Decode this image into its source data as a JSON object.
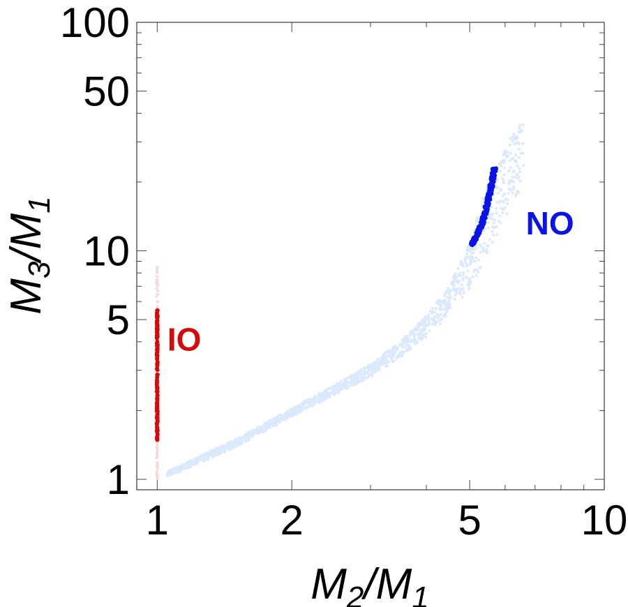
{
  "chart_data": {
    "type": "scatter",
    "x_scale": "log",
    "y_scale": "log",
    "xlim": [
      0.9,
      10
    ],
    "ylim": [
      0.9,
      100
    ],
    "x_ticks": [
      {
        "value": 1,
        "label": "1"
      },
      {
        "value": 2,
        "label": "2"
      },
      {
        "value": 5,
        "label": "5"
      },
      {
        "value": 10,
        "label": "10"
      }
    ],
    "y_ticks": [
      {
        "value": 1,
        "label": "1"
      },
      {
        "value": 5,
        "label": "5"
      },
      {
        "value": 10,
        "label": "10"
      },
      {
        "value": 50,
        "label": "50"
      },
      {
        "value": 100,
        "label": "100"
      }
    ],
    "xlabel": {
      "main": "M",
      "sub1": "2",
      "sep": "/M",
      "sub2": "1"
    },
    "ylabel": {
      "main": "M",
      "sub1": "3",
      "sep": "/M",
      "sub2": "1"
    },
    "series": [
      {
        "name": "NO",
        "label": "NO",
        "label_position": {
          "x": 7.6,
          "y": 13.2
        },
        "color": "#0a14e6",
        "light_color": "#dbe9ff",
        "light_band": [
          {
            "x": 1.05,
            "y_lo": 1.02,
            "y_hi": 1.08
          },
          {
            "x": 1.5,
            "y_lo": 1.38,
            "y_hi": 1.5
          },
          {
            "x": 2.0,
            "y_lo": 1.88,
            "y_hi": 2.05
          },
          {
            "x": 2.5,
            "y_lo": 2.35,
            "y_hi": 2.6
          },
          {
            "x": 3.0,
            "y_lo": 2.8,
            "y_hi": 3.2
          },
          {
            "x": 3.5,
            "y_lo": 3.4,
            "y_hi": 4.0
          },
          {
            "x": 4.0,
            "y_lo": 4.2,
            "y_hi": 5.2
          },
          {
            "x": 4.5,
            "y_lo": 5.2,
            "y_hi": 7.0
          },
          {
            "x": 5.0,
            "y_lo": 6.8,
            "y_hi": 11.0
          },
          {
            "x": 5.3,
            "y_lo": 8.5,
            "y_hi": 16.0
          },
          {
            "x": 5.6,
            "y_lo": 10.5,
            "y_hi": 22.0
          },
          {
            "x": 5.9,
            "y_lo": 12.5,
            "y_hi": 26.0
          },
          {
            "x": 6.2,
            "y_lo": 15.0,
            "y_hi": 32.0
          },
          {
            "x": 6.6,
            "y_lo": 20.0,
            "y_hi": 38.0
          }
        ],
        "dense_curve": [
          {
            "x": 5.05,
            "y": 10.6
          },
          {
            "x": 5.2,
            "y": 11.8
          },
          {
            "x": 5.35,
            "y": 13.5
          },
          {
            "x": 5.45,
            "y": 15.5
          },
          {
            "x": 5.55,
            "y": 18.0
          },
          {
            "x": 5.62,
            "y": 20.5
          },
          {
            "x": 5.68,
            "y": 23.0
          }
        ]
      },
      {
        "name": "IO",
        "label": "IO",
        "label_position": {
          "x": 1.1,
          "y": 4.1
        },
        "color": "#d40a0a",
        "light_color": "#f5d8d8",
        "light_range": {
          "x": 1.0,
          "y_lo": 1.0,
          "y_hi": 8.6
        },
        "dense_range": {
          "x": 1.0,
          "y_lo": 1.48,
          "y_hi": 5.5
        }
      }
    ]
  }
}
